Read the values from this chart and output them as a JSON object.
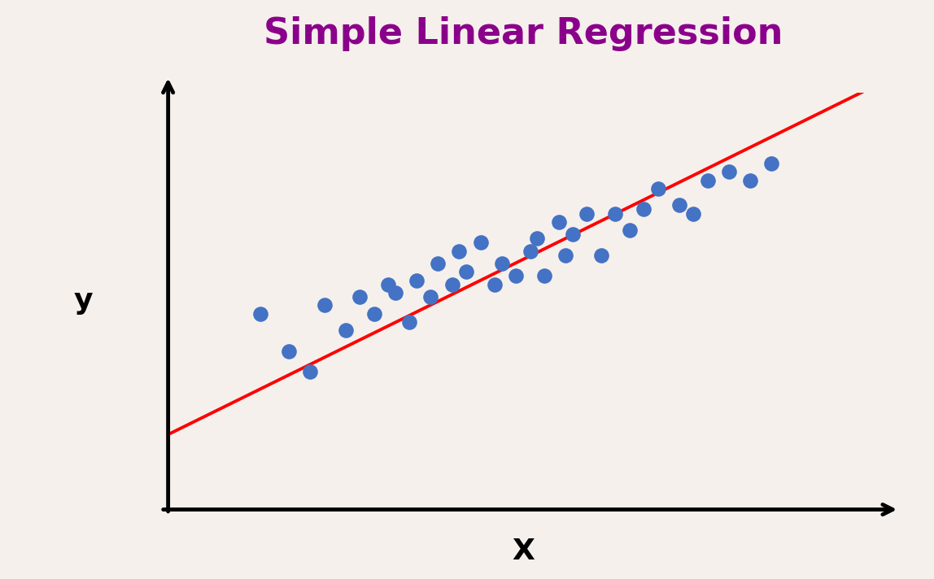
{
  "title": "Simple Linear Regression",
  "title_color": "#8B008B",
  "title_fontsize": 32,
  "xlabel": "X",
  "ylabel": "y",
  "background_color": "#F5F0EC",
  "dot_color": "#4472C4",
  "line_color": "#FF0000",
  "dot_size": 180,
  "points_x": [
    0.13,
    0.17,
    0.2,
    0.22,
    0.25,
    0.27,
    0.29,
    0.31,
    0.32,
    0.34,
    0.35,
    0.37,
    0.38,
    0.4,
    0.41,
    0.42,
    0.44,
    0.46,
    0.47,
    0.49,
    0.51,
    0.52,
    0.53,
    0.55,
    0.56,
    0.57,
    0.59,
    0.61,
    0.63,
    0.65,
    0.67,
    0.69,
    0.72,
    0.74,
    0.76,
    0.79,
    0.82,
    0.85
  ],
  "points_y": [
    0.47,
    0.38,
    0.33,
    0.49,
    0.43,
    0.51,
    0.47,
    0.54,
    0.52,
    0.45,
    0.55,
    0.51,
    0.59,
    0.54,
    0.62,
    0.57,
    0.64,
    0.54,
    0.59,
    0.56,
    0.62,
    0.65,
    0.56,
    0.69,
    0.61,
    0.66,
    0.71,
    0.61,
    0.71,
    0.67,
    0.72,
    0.77,
    0.73,
    0.71,
    0.79,
    0.81,
    0.79,
    0.83
  ],
  "line_x_start": 0.0,
  "line_x_end": 1.0,
  "line_y_start": 0.18,
  "line_y_end": 1.02,
  "xlim": [
    0.0,
    1.0
  ],
  "ylim": [
    0.0,
    1.0
  ],
  "axis_label_fontsize": 26,
  "line_width": 2.8,
  "arrow_lw": 3.5,
  "arrow_mutation_scale": 22
}
